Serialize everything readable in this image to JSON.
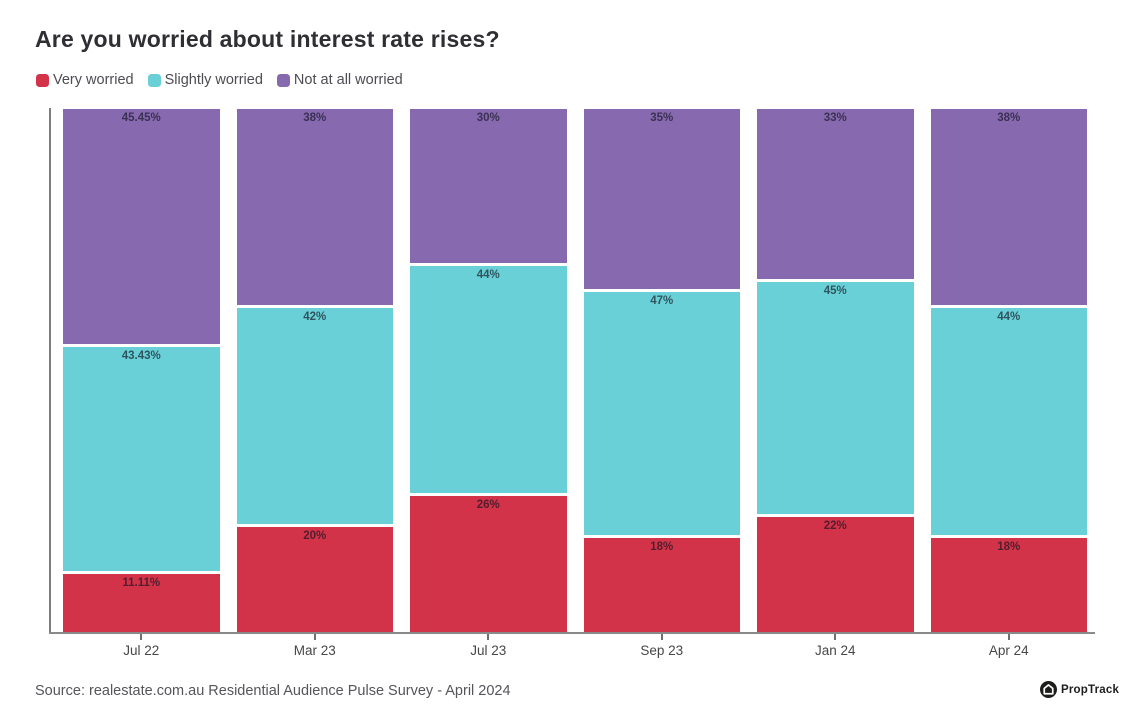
{
  "title": "Are you worried about interest rate rises?",
  "legend": {
    "items": [
      {
        "label": "Very worried",
        "color": "#d23349"
      },
      {
        "label": "Slightly worried",
        "color": "#68d0d6"
      },
      {
        "label": "Not at all worried",
        "color": "#8769b0"
      }
    ]
  },
  "chart_data": {
    "type": "bar",
    "variant": "stacked-percentage-column",
    "title": "Are you worried about interest rate rises?",
    "categories": [
      "Jul 22",
      "Mar 23",
      "Jul 23",
      "Sep 23",
      "Jan 24",
      "Apr 24"
    ],
    "series": [
      {
        "name": "Very worried",
        "color": "#d23349",
        "values": [
          11.11,
          20,
          26,
          18,
          22,
          18
        ],
        "labels": [
          "11.11%",
          "20%",
          "26%",
          "18%",
          "22%",
          "18%"
        ]
      },
      {
        "name": "Slightly worried",
        "color": "#68d0d6",
        "values": [
          43.43,
          42,
          44,
          47,
          45,
          44
        ],
        "labels": [
          "43.43%",
          "42%",
          "44%",
          "47%",
          "45%",
          "44%"
        ]
      },
      {
        "name": "Not at all worried",
        "color": "#8769b0",
        "values": [
          45.45,
          38,
          30,
          35,
          33,
          38
        ],
        "labels": [
          "45.45%",
          "38%",
          "30%",
          "35%",
          "33%",
          "38%"
        ]
      }
    ],
    "stack_order_top_to_bottom": [
      "Not at all worried",
      "Slightly worried",
      "Very worried"
    ],
    "ylim": [
      0,
      100
    ],
    "grid": false,
    "legend_position": "top-left",
    "value_labels": "inside-top-center"
  },
  "footer": {
    "source": "Source: realestate.com.au Residential Audience Pulse Survey - April 2024",
    "brand": "PropTrack"
  }
}
